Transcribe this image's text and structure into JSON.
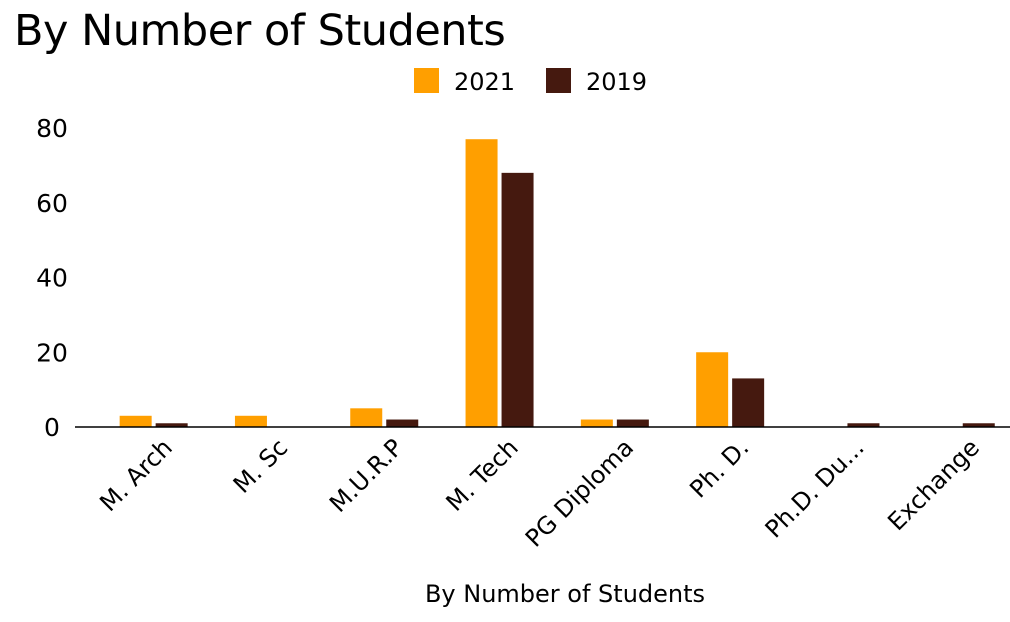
{
  "chart_data": {
    "type": "bar",
    "title": "By Number of Students",
    "xlabel": "By Number of Students",
    "ylabel": "",
    "categories": [
      "M. Arch",
      "M. Sc",
      "M.U.R.P",
      "M. Tech",
      "PG Diploma",
      "Ph. D.",
      "Ph.D. Du...",
      "Exchange"
    ],
    "series": [
      {
        "name": "2021",
        "color": "#ff9f00",
        "values": [
          3,
          3,
          5,
          77,
          2,
          20,
          0,
          0
        ]
      },
      {
        "name": "2019",
        "color": "#45190f",
        "values": [
          1,
          0,
          2,
          68,
          2,
          13,
          1,
          1
        ]
      }
    ],
    "ylim": [
      0,
      80
    ],
    "yticks": [
      0,
      20,
      40,
      60,
      80
    ],
    "grid": false,
    "legend": "top-center"
  }
}
